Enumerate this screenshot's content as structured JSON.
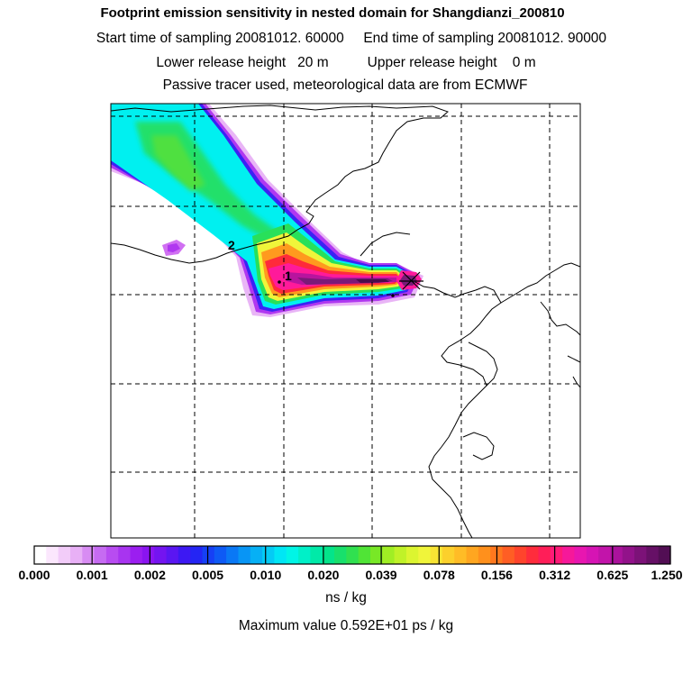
{
  "titles": {
    "line1": "Footprint emission sensitivity in nested domain for Shangdianzi_200810",
    "line2": "Start time of sampling 20081012. 60000     End time of sampling 20081012. 90000",
    "line3": "Lower release height   20 m          Upper release height    0 m",
    "line4": "Passive tracer used, meteorological data are from ECMWF"
  },
  "map": {
    "station_labels": [
      "1",
      "2"
    ],
    "colors": {
      "white": "#ffffff",
      "violet_light": "#e8b6f6",
      "purple": "#b021f0",
      "blue": "#3b22f5",
      "cyan": "#00f5f5",
      "green": "#20e86a",
      "yellow": "#f0f53b",
      "orange": "#ff9a1e",
      "red": "#ff2a3a",
      "magenta": "#ff1a9a",
      "dark_purple": "#7a1a78"
    }
  },
  "colorbar": {
    "tick_labels": [
      "0.000",
      "0.001",
      "0.002",
      "0.005",
      "0.010",
      "0.020",
      "0.039",
      "0.078",
      "0.156",
      "0.312",
      "0.625",
      "1.250"
    ],
    "units": "ns / kg",
    "colors": [
      "#ffffff",
      "#fbe7fd",
      "#f2ccf9",
      "#e8b0f6",
      "#d88cf3",
      "#c66bf2",
      "#b84cf1",
      "#a834f0",
      "#9b1ef0",
      "#8a14f0",
      "#7414f0",
      "#5a16f2",
      "#3d18f3",
      "#2425f4",
      "#1640f5",
      "#0e5af5",
      "#0a78f5",
      "#0895f5",
      "#06b0f5",
      "#04cbf5",
      "#00e6f5",
      "#00f5e6",
      "#00f0c8",
      "#00eaa8",
      "#04e48a",
      "#18e06c",
      "#30e050",
      "#50e436",
      "#78e826",
      "#a0ee24",
      "#c0f228",
      "#dcf530",
      "#f0f53a",
      "#f8e434",
      "#fcd02c",
      "#ffbc26",
      "#ffa620",
      "#ff901c",
      "#ff781e",
      "#ff5e24",
      "#ff442c",
      "#ff2c3c",
      "#ff1e58",
      "#ff1a78",
      "#f6189a",
      "#e816b0",
      "#d614b4",
      "#c214aa",
      "#aa129c",
      "#92128a",
      "#7c1278",
      "#661066",
      "#520e54"
    ]
  },
  "footer": {
    "max_value": "Maximum value  0.592E+01 ps / kg"
  }
}
